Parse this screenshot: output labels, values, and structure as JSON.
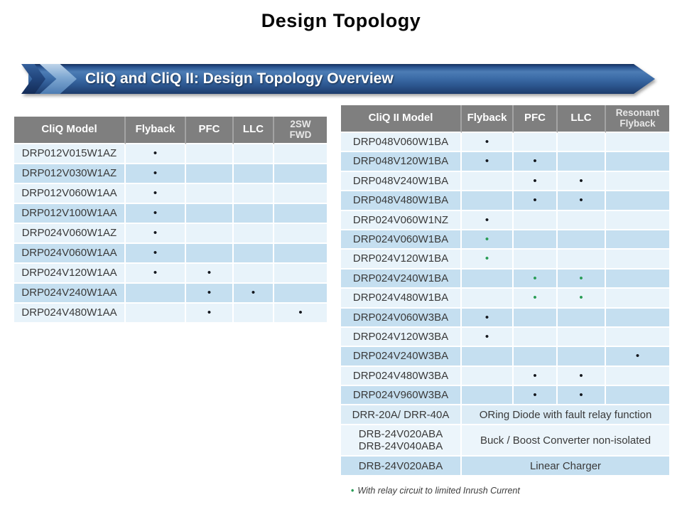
{
  "page": {
    "title": "Design Topology"
  },
  "banner": {
    "title": "CliQ and CliQ II: Design Topology Overview"
  },
  "colors": {
    "header_bg": "#7f7f7f",
    "row_light": "#e8f3fa",
    "row_dark": "#c5dff0",
    "row_drr": "#dcecf6",
    "row_drb_double": "#ecf5fb",
    "dot_black": "#15181e",
    "dot_green": "#2a9d56",
    "banner_dark_blue": "#1d3c6c",
    "banner_mid_blue": "#3a6aa5",
    "banner_light_chevron": "#7fa8d2"
  },
  "left_table": {
    "headers": [
      "CliQ Model",
      "Flyback",
      "PFC",
      "LLC",
      "2SW\nFWD"
    ],
    "rows": [
      {
        "model": "DRP012V015W1AZ",
        "dots": [
          "black",
          "",
          "",
          ""
        ]
      },
      {
        "model": "DRP012V030W1AZ",
        "dots": [
          "black",
          "",
          "",
          ""
        ]
      },
      {
        "model": "DRP012V060W1AA",
        "dots": [
          "black",
          "",
          "",
          ""
        ]
      },
      {
        "model": "DRP012V100W1AA",
        "dots": [
          "black",
          "",
          "",
          ""
        ]
      },
      {
        "model": "DRP024V060W1AZ",
        "dots": [
          "black",
          "",
          "",
          ""
        ]
      },
      {
        "model": "DRP024V060W1AA",
        "dots": [
          "black",
          "",
          "",
          ""
        ]
      },
      {
        "model": "DRP024V120W1AA",
        "dots": [
          "black",
          "black",
          "",
          ""
        ]
      },
      {
        "model": "DRP024V240W1AA",
        "dots": [
          "",
          "black",
          "black",
          ""
        ]
      },
      {
        "model": "DRP024V480W1AA",
        "dots": [
          "",
          "black",
          "",
          "black"
        ]
      }
    ]
  },
  "right_table": {
    "headers": [
      "CliQ II Model",
      "Flyback",
      "PFC",
      "LLC",
      "Resonant\nFlyback"
    ],
    "rows": [
      {
        "model": "DRP048V060W1BA",
        "dots": [
          "black",
          "",
          "",
          ""
        ]
      },
      {
        "model": "DRP048V120W1BA",
        "dots": [
          "black",
          "black",
          "",
          ""
        ]
      },
      {
        "model": "DRP048V240W1BA",
        "dots": [
          "",
          "black",
          "black",
          ""
        ]
      },
      {
        "model": "DRP048V480W1BA",
        "dots": [
          "",
          "black",
          "black",
          ""
        ]
      },
      {
        "model": "DRP024V060W1NZ",
        "dots": [
          "black",
          "",
          "",
          ""
        ]
      },
      {
        "model": "DRP024V060W1BA",
        "dots": [
          "green",
          "",
          "",
          ""
        ]
      },
      {
        "model": "DRP024V120W1BA",
        "dots": [
          "green",
          "",
          "",
          ""
        ]
      },
      {
        "model": "DRP024V240W1BA",
        "dots": [
          "",
          "green",
          "green",
          ""
        ]
      },
      {
        "model": "DRP024V480W1BA",
        "dots": [
          "",
          "green",
          "green",
          ""
        ]
      },
      {
        "model": "DRP024V060W3BA",
        "dots": [
          "black",
          "",
          "",
          ""
        ]
      },
      {
        "model": "DRP024V120W3BA",
        "dots": [
          "black",
          "",
          "",
          ""
        ]
      },
      {
        "model": "DRP024V240W3BA",
        "dots": [
          "",
          "",
          "",
          "black"
        ]
      },
      {
        "model": "DRP024V480W3BA",
        "dots": [
          "",
          "black",
          "black",
          ""
        ]
      },
      {
        "model": "DRP024V960W3BA",
        "dots": [
          "",
          "black",
          "black",
          ""
        ]
      },
      {
        "model": "DRR-20A/ DRR-40A",
        "description": "ORing Diode with fault relay function"
      },
      {
        "model": "DRB-24V020ABA\nDRB-24V040ABA",
        "description": "Buck / Boost Converter non-isolated"
      },
      {
        "model": "DRB-24V020ABA",
        "description": "Linear Charger"
      }
    ]
  },
  "footnote": {
    "bullet": "•",
    "text": "With relay circuit to limited Inrush Current"
  }
}
